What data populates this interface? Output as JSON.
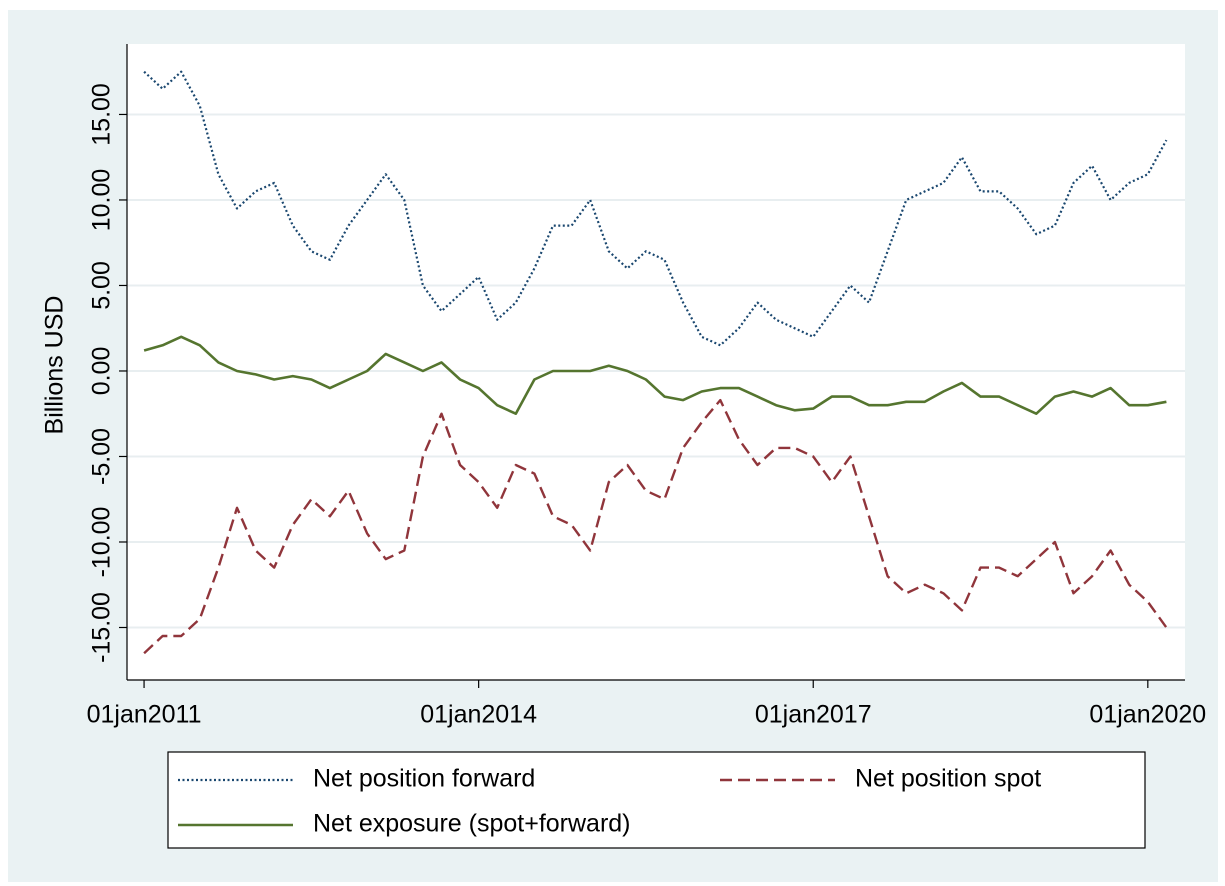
{
  "chart_data": {
    "type": "line",
    "y_label": "Billions USD",
    "x": [
      "01jan2011",
      "01mar2011",
      "01may2011",
      "01jul2011",
      "01sep2011",
      "01nov2011",
      "01jan2012",
      "01mar2012",
      "01may2012",
      "01jul2012",
      "01sep2012",
      "01nov2012",
      "01jan2013",
      "01mar2013",
      "01may2013",
      "01jul2013",
      "01sep2013",
      "01nov2013",
      "01jan2014",
      "01mar2014",
      "01may2014",
      "01jul2014",
      "01sep2014",
      "01nov2014",
      "01jan2015",
      "01mar2015",
      "01may2015",
      "01jul2015",
      "01sep2015",
      "01nov2015",
      "01jan2016",
      "01mar2016",
      "01may2016",
      "01jul2016",
      "01sep2016",
      "01nov2016",
      "01jan2017",
      "01mar2017",
      "01may2017",
      "01jul2017",
      "01sep2017",
      "01nov2017",
      "01jan2018",
      "01mar2018",
      "01may2018",
      "01jul2018",
      "01sep2018",
      "01nov2018",
      "01jan2019",
      "01mar2019",
      "01may2019",
      "01jul2019",
      "01sep2019",
      "01nov2019",
      "01jan2020",
      "01mar2020"
    ],
    "series": [
      {
        "name": "Net position forward",
        "color": "#1a476f",
        "dash": "2,2.5",
        "width": 2.2,
        "values": [
          17.5,
          16.5,
          17.5,
          15.5,
          11.5,
          9.5,
          10.5,
          11,
          8.5,
          7,
          6.5,
          8.5,
          10,
          11.5,
          10,
          5,
          3.5,
          4.5,
          5.5,
          3,
          4,
          6,
          8.5,
          8.5,
          10,
          7,
          6,
          7,
          6.5,
          4,
          2,
          1.5,
          2.5,
          4,
          3,
          2.5,
          2,
          3.5,
          5,
          4,
          7,
          10,
          10.5,
          11,
          12.5,
          10.5,
          10.5,
          9.5,
          8,
          8.5,
          11,
          12,
          10,
          11,
          11.5,
          13.5
        ]
      },
      {
        "name": "Net position spot",
        "color": "#90353b",
        "dash": "12,6",
        "width": 2.4,
        "values": [
          -16.5,
          -15.5,
          -15.5,
          -14.5,
          -11.5,
          -8,
          -10.5,
          -11.5,
          -9,
          -7.5,
          -8.5,
          -7,
          -9.5,
          -11,
          -10.5,
          -5,
          -2.5,
          -5.5,
          -6.5,
          -8,
          -5.5,
          -6,
          -8.5,
          -9,
          -10.5,
          -6.5,
          -5.5,
          -7,
          -7.5,
          -4.5,
          -3,
          -1.7,
          -4,
          -5.5,
          -4.5,
          -4.5,
          -5,
          -6.5,
          -5,
          -8.5,
          -12,
          -13,
          -12.5,
          -13,
          -14,
          -11.5,
          -11.5,
          -12,
          -11,
          -10,
          -13,
          -12,
          -10.5,
          -12.5,
          -13.5,
          -15
        ]
      },
      {
        "name": "Net exposure (spot+forward)",
        "color": "#55752f",
        "dash": "none",
        "width": 2.6,
        "values": [
          1.2,
          1.5,
          2,
          1.5,
          0.5,
          0,
          -0.2,
          -0.5,
          -0.3,
          -0.5,
          -1,
          -0.5,
          0,
          1,
          0.5,
          0,
          0.5,
          -0.5,
          -1,
          -2,
          -2.5,
          -0.5,
          0,
          0,
          0,
          0.3,
          0,
          -0.5,
          -1.5,
          -1.7,
          -1.2,
          -1,
          -1,
          -1.5,
          -2,
          -2.3,
          -2.2,
          -1.5,
          -1.5,
          -2,
          -2,
          -1.8,
          -1.8,
          -1.2,
          -0.7,
          -1.5,
          -1.5,
          -2,
          -2.5,
          -1.5,
          -1.2,
          -1.5,
          -1,
          -2,
          -2,
          -1.8
        ]
      }
    ],
    "xlim": [
      "06nov2010",
      "01may2020"
    ],
    "xticks": [
      "01jan2011",
      "01jan2014",
      "01jan2017",
      "01jan2020"
    ],
    "ylim": [
      -18.07,
      19.12
    ],
    "yticks": [
      {
        "value": -15,
        "label": "-15.00"
      },
      {
        "value": -10,
        "label": "-10.00"
      },
      {
        "value": -5,
        "label": "-5.00"
      },
      {
        "value": 0,
        "label": "0.00"
      },
      {
        "value": 5,
        "label": "5.00"
      },
      {
        "value": 10,
        "label": "10.00"
      },
      {
        "value": 15,
        "label": "15.00"
      }
    ],
    "grid": true,
    "legend": "bottom"
  }
}
